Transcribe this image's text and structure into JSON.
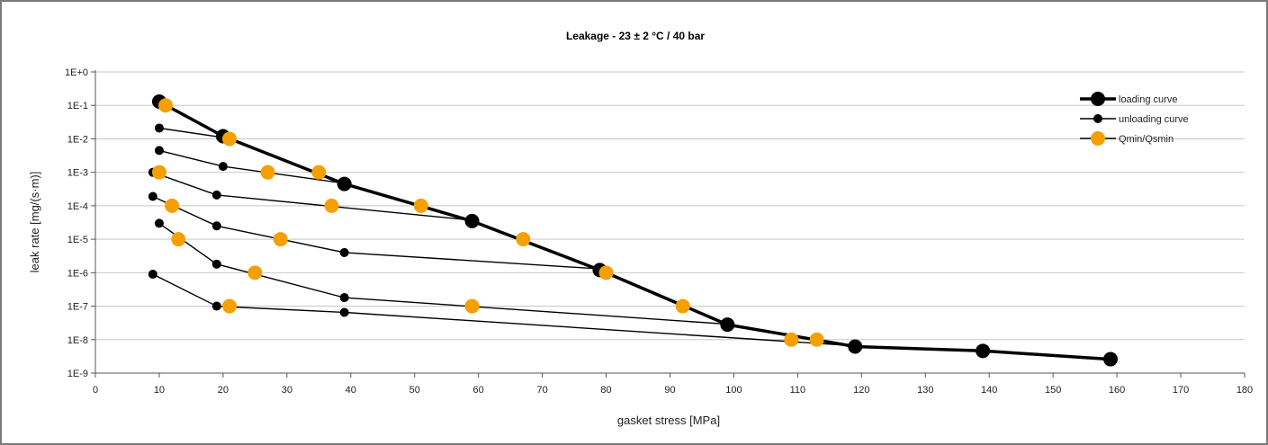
{
  "chart_data": {
    "type": "line",
    "title": "Leakage - 23 ± 2 °C / 40 bar",
    "xlabel": "gasket stress [MPa]",
    "ylabel": "leak rate [mg/(s·m)]",
    "xlim": [
      0,
      180
    ],
    "ylim": [
      1e-09,
      1
    ],
    "yscale": "log",
    "grid": "horizontal",
    "legend_position": "top-right",
    "x_ticks": [
      "0",
      "10",
      "20",
      "30",
      "40",
      "50",
      "60",
      "70",
      "80",
      "90",
      "100",
      "110",
      "120",
      "130",
      "140",
      "150",
      "160",
      "170",
      "180"
    ],
    "y_ticks": [
      "1E+0",
      "1E-1",
      "1E-2",
      "1E-3",
      "1E-4",
      "1E-5",
      "1E-6",
      "1E-7",
      "1E-8",
      "1E-9"
    ],
    "series": [
      {
        "name": "loading curve",
        "color": "#000000",
        "points": [
          [
            10,
            0.13
          ],
          [
            20,
            0.012
          ],
          [
            39,
            0.00045
          ],
          [
            59,
            3.5e-05
          ],
          [
            79,
            1.2e-06
          ],
          [
            99,
            2.8e-08
          ],
          [
            119,
            6.2e-09
          ],
          [
            139,
            4.6e-09
          ],
          [
            159,
            2.6e-09
          ]
        ]
      },
      {
        "name": "unloading curve",
        "color": "#000000",
        "lines": [
          [
            [
              10,
              0.021
            ],
            [
              20,
              0.011
            ]
          ],
          [
            [
              10,
              0.0045
            ],
            [
              20,
              0.0015
            ],
            [
              39,
              0.00047
            ]
          ],
          [
            [
              9,
              0.001
            ],
            [
              19,
              0.00021
            ],
            [
              59,
              3.7e-05
            ]
          ],
          [
            [
              9,
              0.00019
            ],
            [
              19,
              2.5e-05
            ],
            [
              39,
              4e-06
            ],
            [
              79,
              1.3e-06
            ]
          ],
          [
            [
              10,
              3e-05
            ],
            [
              19,
              1.8e-06
            ],
            [
              39,
              1.8e-07
            ],
            [
              99,
              2.9e-08
            ]
          ],
          [
            [
              9,
              9e-07
            ],
            [
              19,
              1e-07
            ],
            [
              39,
              6.5e-08
            ],
            [
              119,
              6.5e-09
            ]
          ]
        ]
      },
      {
        "name": "Qmin/Qsmin",
        "color": "#f5a000",
        "points": [
          [
            11,
            0.1
          ],
          [
            21,
            0.01
          ],
          [
            10,
            0.001
          ],
          [
            27,
            0.001
          ],
          [
            35,
            0.001
          ],
          [
            12,
            0.0001
          ],
          [
            37,
            0.0001
          ],
          [
            51,
            0.0001
          ],
          [
            13,
            1e-05
          ],
          [
            29,
            1e-05
          ],
          [
            67,
            1e-05
          ],
          [
            25,
            1e-06
          ],
          [
            80,
            1e-06
          ],
          [
            21,
            1e-07
          ],
          [
            59,
            1e-07
          ],
          [
            92,
            1e-07
          ],
          [
            109,
            1e-08
          ],
          [
            113,
            1e-08
          ]
        ]
      }
    ]
  }
}
